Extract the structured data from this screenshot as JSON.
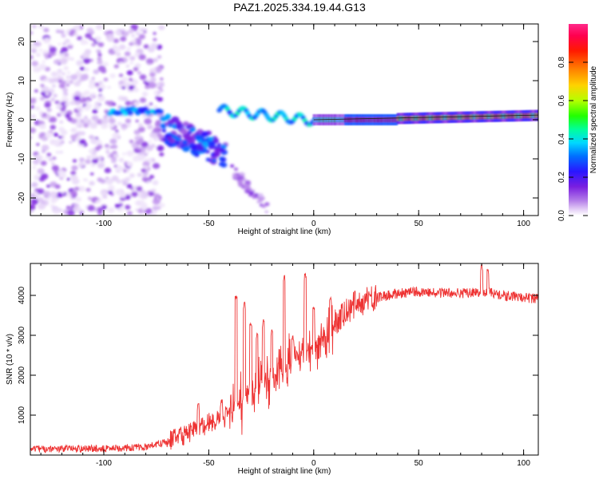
{
  "title": "PAZ1.2025.334.19.44.G13",
  "chart_data": [
    {
      "type": "heatmap",
      "name": "spectrogram",
      "xlabel": "Height of straight line (km)",
      "ylabel": "Frequency (Hz)",
      "xlim": [
        -135,
        107
      ],
      "ylim": [
        -24.5,
        24.5
      ],
      "xticks": [
        -100,
        -50,
        0,
        50,
        100
      ],
      "yticks": [
        -20,
        -10,
        0,
        10,
        20
      ],
      "xtick_labels": [
        "-100",
        "-50",
        "0",
        "50",
        "100"
      ],
      "ytick_labels": [
        "-20",
        "-10",
        "0",
        "10",
        "20"
      ],
      "colorbar": {
        "label": "Normalized spectral amplitude",
        "range": [
          0,
          1
        ],
        "ticks": [
          0.0,
          0.2,
          0.4,
          0.6,
          0.8
        ],
        "tick_labels": [
          "0.0",
          "0.2",
          "0.4",
          "0.6",
          "0.8"
        ],
        "colormap": "rainbow (white-purple-blue-cyan-green-yellow-red-pink)"
      },
      "features": [
        {
          "description": "diffuse noise",
          "x_range": [
            -135,
            -72
          ],
          "freq_range": [
            -24,
            24
          ],
          "amplitude": 0.05
        },
        {
          "description": "carrier track",
          "x_range": [
            -95,
            -75
          ],
          "freq": 2.2,
          "amplitude": 0.4
        },
        {
          "description": "scattered descending branch",
          "x_range": [
            -70,
            -45
          ],
          "freq_range": [
            -8,
            2
          ],
          "amplitude": 0.3
        },
        {
          "description": "secondary branch",
          "x_range": [
            -35,
            -22
          ],
          "freq_range": [
            -23,
            -12
          ],
          "amplitude": 0.08
        },
        {
          "description": "line tracks near 0 Hz",
          "x_range": [
            -45,
            0
          ],
          "freq_range": [
            -3,
            3
          ],
          "amplitude": 0.3
        },
        {
          "description": "strong signal line",
          "x_range": [
            15,
            40
          ],
          "freq": 0,
          "amplitude": 1.0
        },
        {
          "description": "signal line",
          "x_range": [
            40,
            107
          ],
          "freq_range": [
            0,
            1.5
          ],
          "amplitude": 0.55
        }
      ]
    },
    {
      "type": "line",
      "name": "snr",
      "xlabel": "Height of straight line (km)",
      "ylabel": "SNR (10 * v/v)",
      "xlim": [
        -135,
        107
      ],
      "ylim": [
        0,
        4800
      ],
      "xticks": [
        -100,
        -50,
        0,
        50,
        100
      ],
      "yticks": [
        1000,
        2000,
        3000,
        4000
      ],
      "xtick_labels": [
        "-100",
        "-50",
        "0",
        "50",
        "100"
      ],
      "ytick_labels": [
        "1000",
        "2000",
        "3000",
        "4000"
      ],
      "color": "#ee3333",
      "baseline": [
        [
          -135,
          150
        ],
        [
          -100,
          160
        ],
        [
          -80,
          200
        ],
        [
          -70,
          330
        ],
        [
          -60,
          520
        ],
        [
          -55,
          650
        ],
        [
          -50,
          800
        ],
        [
          -45,
          900
        ],
        [
          -40,
          1000
        ],
        [
          -35,
          1300
        ],
        [
          -30,
          1600
        ],
        [
          -25,
          1750
        ],
        [
          -20,
          1950
        ],
        [
          -15,
          2100
        ],
        [
          -10,
          2350
        ],
        [
          -5,
          2550
        ],
        [
          0,
          2750
        ],
        [
          5,
          3000
        ],
        [
          10,
          3300
        ],
        [
          15,
          3550
        ],
        [
          20,
          3800
        ],
        [
          30,
          3950
        ],
        [
          40,
          4050
        ],
        [
          50,
          4100
        ],
        [
          60,
          4060
        ],
        [
          70,
          4050
        ],
        [
          80,
          4100
        ],
        [
          90,
          4000
        ],
        [
          100,
          3950
        ],
        [
          107,
          3920
        ]
      ],
      "spikes": [
        [
          -55,
          1300
        ],
        [
          -44,
          1400
        ],
        [
          -37,
          4000
        ],
        [
          -33,
          3850
        ],
        [
          -30,
          3300
        ],
        [
          -27,
          3050
        ],
        [
          -24,
          3400
        ],
        [
          -20,
          3150
        ],
        [
          -14,
          4500
        ],
        [
          -10,
          3000
        ],
        [
          -4,
          4550
        ],
        [
          0,
          3700
        ],
        [
          8,
          3950
        ],
        [
          80,
          4800
        ],
        [
          83,
          4650
        ]
      ]
    }
  ]
}
